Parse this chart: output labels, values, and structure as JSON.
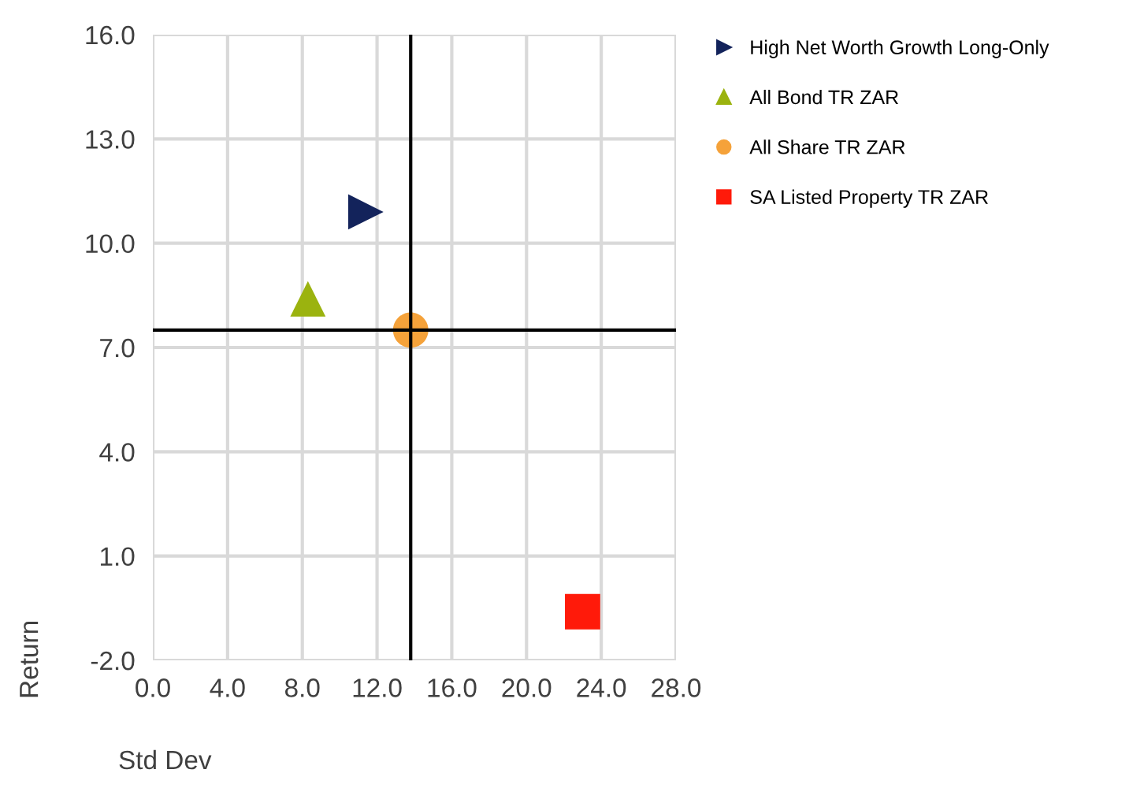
{
  "chart_data": {
    "type": "scatter",
    "xlabel": "Std Dev",
    "ylabel": "Return",
    "xlim": [
      0,
      28
    ],
    "ylim": [
      -2,
      16
    ],
    "xticks": [
      {
        "value": 0,
        "label": "0.0"
      },
      {
        "value": 4,
        "label": "4.0"
      },
      {
        "value": 8,
        "label": "8.0"
      },
      {
        "value": 12,
        "label": "12.0"
      },
      {
        "value": 16,
        "label": "16.0"
      },
      {
        "value": 20,
        "label": "20.0"
      },
      {
        "value": 24,
        "label": "24.0"
      },
      {
        "value": 28,
        "label": "28.0"
      }
    ],
    "yticks": [
      {
        "value": -2,
        "label": "-2.0"
      },
      {
        "value": 1,
        "label": "1.0"
      },
      {
        "value": 4,
        "label": "4.0"
      },
      {
        "value": 7,
        "label": "7.0"
      },
      {
        "value": 10,
        "label": "10.0"
      },
      {
        "value": 13,
        "label": "13.0"
      },
      {
        "value": 16,
        "label": "16.0"
      }
    ],
    "grid": true,
    "legend": "top right",
    "series": [
      {
        "name": "High Net Worth Growth Long-Only",
        "color": "#13235b",
        "marker": "triangle_right",
        "x": [
          11.4
        ],
        "values": [
          10.9
        ]
      },
      {
        "name": "All Bond TR ZAR",
        "color": "#9bb30f",
        "marker": "triangle",
        "x": [
          8.3
        ],
        "values": [
          8.4
        ]
      },
      {
        "name": "All Share TR ZAR",
        "color": "#f5a23a",
        "marker": "circle",
        "x": [
          13.8
        ],
        "values": [
          7.5
        ]
      },
      {
        "name": "SA Listed Property TR ZAR",
        "color": "#ff1a0a",
        "marker": "square",
        "x": [
          23.0
        ],
        "values": [
          -0.6
        ]
      }
    ],
    "ref_lines": [
      {
        "axis": "x",
        "value": 13.8,
        "color": "#000000"
      },
      {
        "axis": "y",
        "value": 7.5,
        "color": "#000000"
      }
    ]
  }
}
